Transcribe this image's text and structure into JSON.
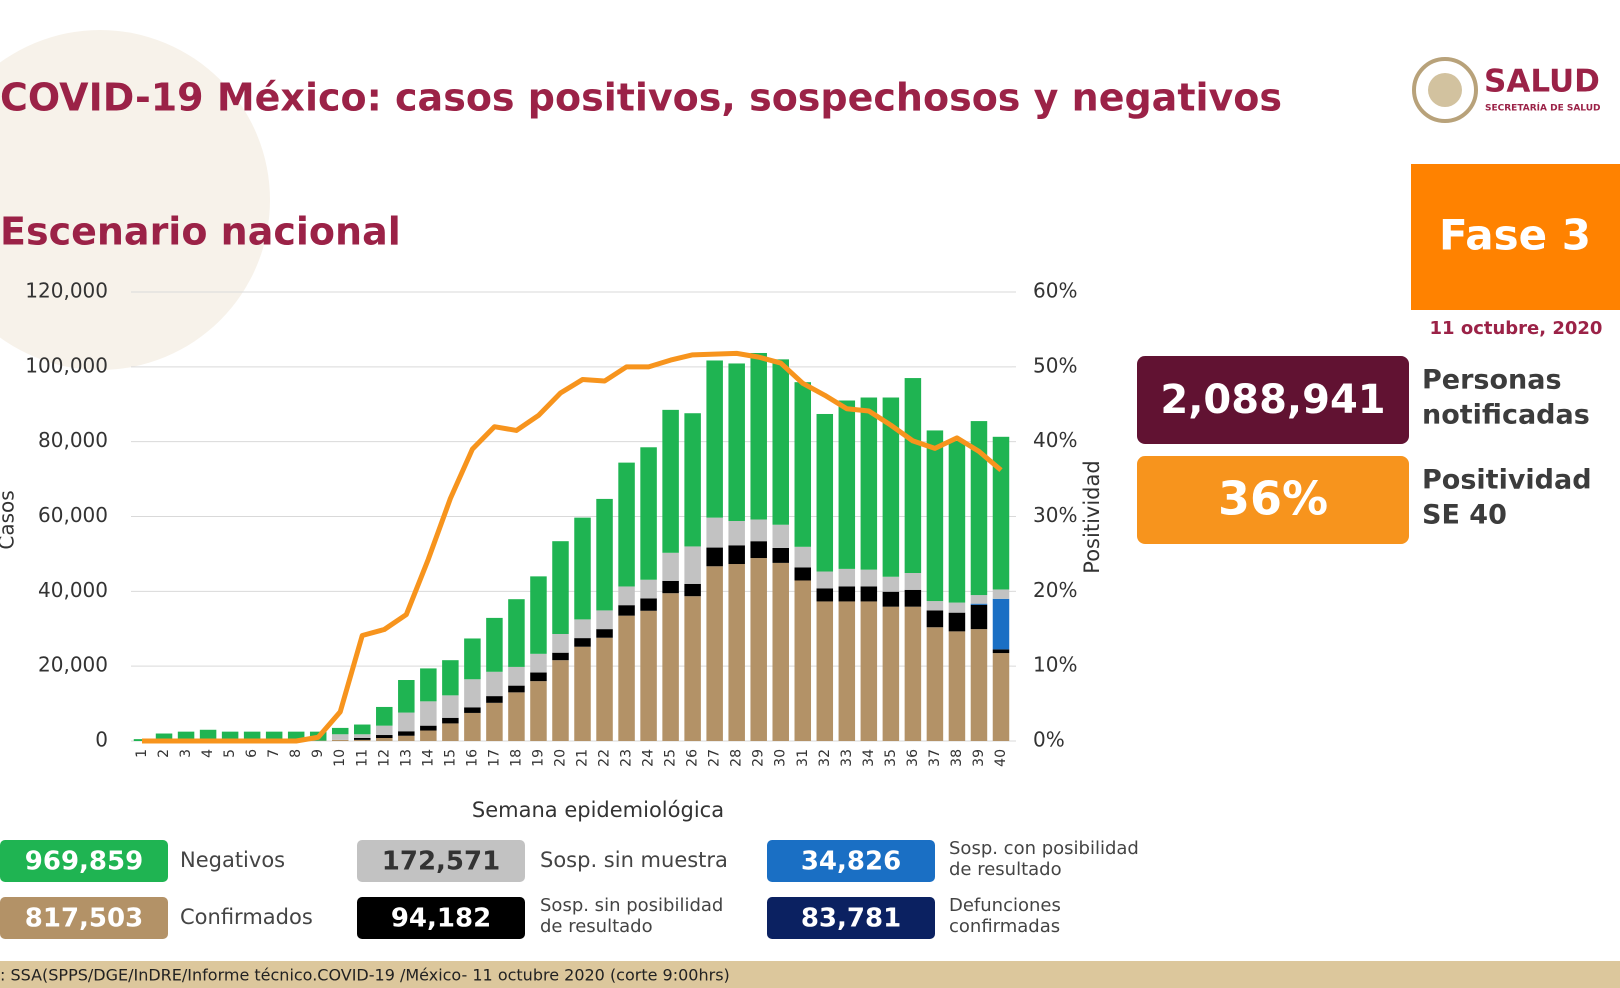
{
  "header": {
    "title": "COVID-19 México: casos positivos, sospechosos y negativos",
    "subtitle": "Escenario nacional",
    "logo": "SALUD",
    "logo_sub": "SECRETARÍA DE SALUD"
  },
  "phase": "Fase 3",
  "date": "11 octubre, 2020",
  "stats": [
    {
      "value": "2,088,941",
      "label": [
        "Personas",
        "notificadas"
      ],
      "color": "#611232"
    },
    {
      "value": "36%",
      "label": [
        "Positividad",
        "SE 40"
      ],
      "color": "#f7941d"
    }
  ],
  "extra_legend": {
    "name": "Defunciones confirmadas",
    "total": "83,781",
    "color": "#0b2161"
  },
  "source": ": SSA(SPPS/DGE/InDRE/Informe técnico.COVID-19 /México- 11 octubre 2020 (corte 9:00hrs)",
  "chart_data": {
    "type": "bar",
    "stacked": true,
    "grid": true,
    "x_label": "Semana epidemiológica",
    "y_label": "Casos",
    "y2_label": "Positividad",
    "categories": [
      "1",
      "2",
      "3",
      "4",
      "5",
      "6",
      "7",
      "8",
      "9",
      "10",
      "11",
      "12",
      "13",
      "14",
      "15",
      "16",
      "17",
      "18",
      "19",
      "20",
      "21",
      "22",
      "23",
      "24",
      "25",
      "26",
      "27",
      "28",
      "29",
      "30",
      "31",
      "32",
      "33",
      "34",
      "35",
      "36",
      "37",
      "38",
      "39",
      "40"
    ],
    "ylim": [
      0,
      120000
    ],
    "yticks": [
      0,
      {
        "value": 20000,
        "label": "20,000"
      },
      {
        "value": 40000,
        "label": "40,000"
      },
      {
        "value": 60000,
        "label": "60,000"
      },
      {
        "value": 80000,
        "label": "80,000"
      },
      {
        "value": 100000,
        "label": "100,000"
      },
      {
        "value": 120000,
        "label": "120,000"
      }
    ],
    "y2lim": [
      0,
      60
    ],
    "y2ticks": [
      {
        "value": 0,
        "label": "0%"
      },
      {
        "value": 10,
        "label": "10%"
      },
      {
        "value": 20,
        "label": "20%"
      },
      {
        "value": 30,
        "label": "30%"
      },
      {
        "value": 40,
        "label": "40%"
      },
      {
        "value": 50,
        "label": "50%"
      },
      {
        "value": 60,
        "label": "60%"
      }
    ],
    "series": [
      {
        "name": "Confirmados",
        "total": "817,503",
        "color": "#b39267",
        "values": [
          0,
          0,
          0,
          0,
          0,
          0,
          0,
          0,
          100,
          300,
          300,
          800,
          1400,
          2800,
          4700,
          7500,
          10200,
          13000,
          16000,
          21600,
          25200,
          27600,
          33500,
          34800,
          39500,
          38700,
          46700,
          47300,
          48900,
          47600,
          42900,
          37300,
          37300,
          37300,
          35900,
          35900,
          30400,
          29300,
          29900,
          23500
        ]
      },
      {
        "name": "Sosp. sin posibilidad de resultado",
        "total": "94,182",
        "color": "#000000",
        "values": [
          0,
          0,
          0,
          0,
          0,
          0,
          0,
          0,
          0,
          0,
          500,
          800,
          1200,
          1300,
          1500,
          1500,
          1800,
          1800,
          2300,
          2000,
          2300,
          2300,
          2800,
          3300,
          3300,
          3300,
          5000,
          5000,
          4500,
          4000,
          3500,
          3500,
          4000,
          4000,
          4000,
          4500,
          4500,
          5000,
          6500,
          1000
        ]
      },
      {
        "name": "Sosp. con posibilidad de resultado",
        "total": "34,826",
        "color": "#1a6fc4",
        "values": [
          0,
          0,
          0,
          0,
          0,
          0,
          0,
          0,
          0,
          0,
          0,
          0,
          0,
          0,
          0,
          0,
          0,
          0,
          0,
          0,
          0,
          0,
          0,
          0,
          0,
          0,
          0,
          0,
          0,
          0,
          0,
          0,
          0,
          0,
          0,
          0,
          0,
          0,
          300,
          13500
        ]
      },
      {
        "name": "Sosp. sin muestra",
        "total": "172,571",
        "color": "#c2c2c2",
        "values": [
          0,
          0,
          0,
          0,
          0,
          0,
          0,
          0,
          0,
          1500,
          1000,
          2500,
          5000,
          6500,
          6000,
          7500,
          6500,
          5000,
          5000,
          5000,
          5000,
          5000,
          5000,
          5000,
          7500,
          10000,
          8000,
          6500,
          5800,
          6200,
          5500,
          4500,
          4700,
          4500,
          4000,
          4500,
          2500,
          2700,
          2300,
          2500
        ]
      },
      {
        "name": "Negativos",
        "total": "969,859",
        "color": "#1fb452",
        "values": [
          500,
          2000,
          2500,
          3000,
          2500,
          2500,
          2500,
          2500,
          2400,
          1700,
          2600,
          5000,
          8700,
          8800,
          9400,
          10900,
          14400,
          18100,
          20700,
          24800,
          27200,
          29800,
          33100,
          35400,
          38200,
          35600,
          42000,
          42100,
          44500,
          44200,
          44000,
          42100,
          45000,
          46000,
          47900,
          52100,
          45600,
          43200,
          46500,
          40800
        ]
      },
      {
        "name": "Positividad",
        "axis": "y2",
        "type": "line",
        "color": "#f7941d",
        "values": [
          0,
          0,
          0,
          0,
          0,
          0,
          0,
          0,
          0.5,
          3.9,
          14.1,
          14.9,
          16.9,
          24.3,
          32.4,
          39,
          42,
          41.5,
          43.5,
          46.5,
          48.3,
          48.1,
          50,
          50,
          50.9,
          51.6,
          51.7,
          51.8,
          51.3,
          50.5,
          47.8,
          46.2,
          44.4,
          44.1,
          42.2,
          40.1,
          39.1,
          40.5,
          38.7,
          36.2
        ]
      }
    ]
  }
}
